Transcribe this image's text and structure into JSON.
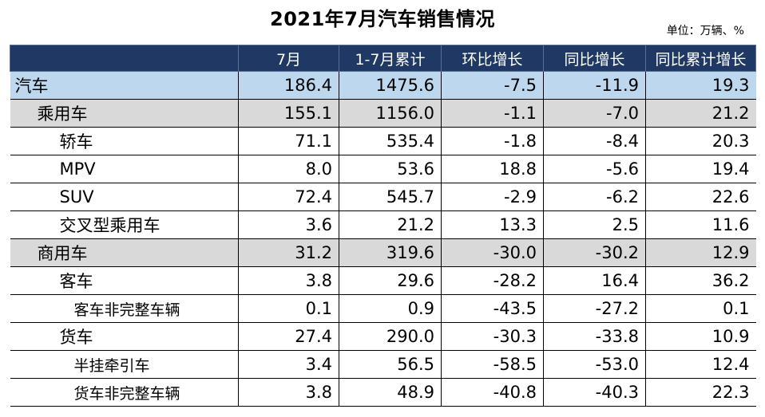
{
  "title": "2021年7月汽车销售情况",
  "unit": "单位：万辆、%",
  "headers": [
    "",
    "7月",
    "1-7月累计",
    "环比增长",
    "同比增长",
    "同比累计增长"
  ],
  "rows": [
    {
      "name": "汽车",
      "level": 0,
      "values": [
        "186.4",
        "1475.6",
        "-7.5",
        "-11.9",
        "19.3"
      ]
    },
    {
      "name": "乘用车",
      "level": 1,
      "values": [
        "155.1",
        "1156.0",
        "-1.1",
        "-7.0",
        "21.2"
      ]
    },
    {
      "name": "轿车",
      "level": 2,
      "values": [
        "71.1",
        "535.4",
        "-1.8",
        "-8.4",
        "20.3"
      ]
    },
    {
      "name": "MPV",
      "level": 2,
      "values": [
        "8.0",
        "53.6",
        "18.8",
        "-5.6",
        "19.4"
      ]
    },
    {
      "name": "SUV",
      "level": 2,
      "values": [
        "72.4",
        "545.7",
        "-2.9",
        "-6.2",
        "22.6"
      ]
    },
    {
      "name": "交叉型乘用车",
      "level": 2,
      "values": [
        "3.6",
        "21.2",
        "13.3",
        "2.5",
        "11.6"
      ]
    },
    {
      "name": "商用车",
      "level": 1,
      "values": [
        "31.2",
        "319.6",
        "-30.0",
        "-30.2",
        "12.9"
      ]
    },
    {
      "name": "客车",
      "level": 2,
      "values": [
        "3.8",
        "29.6",
        "-28.2",
        "16.4",
        "36.2"
      ]
    },
    {
      "name": "客车非完整车辆",
      "level": 3,
      "values": [
        "0.1",
        "0.9",
        "-43.5",
        "-27.2",
        "0.1"
      ]
    },
    {
      "name": "货车",
      "level": 2,
      "values": [
        "27.4",
        "290.0",
        "-30.3",
        "-33.8",
        "10.9"
      ]
    },
    {
      "name": "半挂牵引车",
      "level": 3,
      "values": [
        "3.4",
        "56.5",
        "-58.5",
        "-53.0",
        "12.4"
      ]
    },
    {
      "name": "货车非完整车辆",
      "level": 3,
      "values": [
        "3.8",
        "48.9",
        "-40.8",
        "-40.3",
        "22.3"
      ]
    }
  ],
  "colors": {
    "header_bg": "#1f3864",
    "total_row_bg": "#bdd7ee",
    "category_row_bg": "#d9d9d9"
  }
}
